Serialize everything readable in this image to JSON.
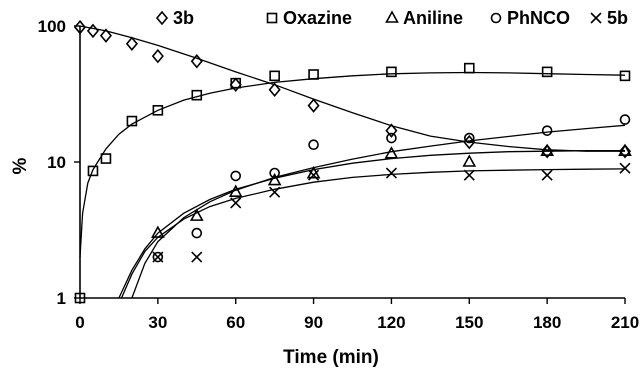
{
  "chart_data": {
    "type": "scatter",
    "xlabel": "Time (min)",
    "ylabel": "%",
    "xlim": [
      0,
      210
    ],
    "ylim": [
      1,
      100
    ],
    "yscale": "log",
    "x_ticks": [
      "0",
      "30",
      "60",
      "90",
      "120",
      "150",
      "180",
      "210"
    ],
    "y_ticks": [
      "1",
      "10",
      "100"
    ],
    "legend_position": "top",
    "series": [
      {
        "name": "3b",
        "marker": "diamond",
        "points": [
          [
            0,
            98
          ],
          [
            5,
            92
          ],
          [
            10,
            85
          ],
          [
            20,
            74
          ],
          [
            30,
            60
          ],
          [
            45,
            55
          ],
          [
            60,
            37
          ],
          [
            75,
            34
          ],
          [
            90,
            26
          ],
          [
            120,
            17
          ],
          [
            150,
            14
          ],
          [
            180,
            12
          ],
          [
            210,
            12
          ]
        ],
        "fit": [
          [
            0,
            100
          ],
          [
            10,
            92
          ],
          [
            20,
            82
          ],
          [
            30,
            72
          ],
          [
            45,
            58
          ],
          [
            60,
            46
          ],
          [
            75,
            37
          ],
          [
            90,
            29
          ],
          [
            105,
            23
          ],
          [
            120,
            18.5
          ],
          [
            135,
            15.5
          ],
          [
            150,
            14
          ],
          [
            165,
            13
          ],
          [
            180,
            12.3
          ],
          [
            195,
            12
          ],
          [
            210,
            12
          ]
        ]
      },
      {
        "name": "Oxazine",
        "marker": "square",
        "points": [
          [
            0,
            1
          ],
          [
            5,
            8.6
          ],
          [
            10,
            10.6
          ],
          [
            20,
            20
          ],
          [
            30,
            24
          ],
          [
            45,
            31
          ],
          [
            60,
            38
          ],
          [
            75,
            43
          ],
          [
            90,
            44
          ],
          [
            120,
            46
          ],
          [
            150,
            49
          ],
          [
            180,
            46
          ],
          [
            210,
            43
          ]
        ],
        "fit": [
          [
            0,
            2
          ],
          [
            1,
            4.2
          ],
          [
            3,
            7
          ],
          [
            5,
            8.8
          ],
          [
            10,
            12.5
          ],
          [
            15,
            16
          ],
          [
            20,
            19
          ],
          [
            30,
            24
          ],
          [
            40,
            28.5
          ],
          [
            50,
            32
          ],
          [
            60,
            35
          ],
          [
            75,
            38.5
          ],
          [
            90,
            41
          ],
          [
            105,
            43
          ],
          [
            120,
            44.5
          ],
          [
            135,
            45.2
          ],
          [
            150,
            45.5
          ],
          [
            165,
            45.2
          ],
          [
            180,
            44.6
          ],
          [
            195,
            44
          ],
          [
            210,
            43.5
          ]
        ]
      },
      {
        "name": "Aniline",
        "marker": "triangle",
        "points": [
          [
            30,
            3
          ],
          [
            45,
            4
          ],
          [
            60,
            6
          ],
          [
            75,
            7.3
          ],
          [
            90,
            8.2
          ],
          [
            120,
            11.5
          ],
          [
            150,
            10
          ],
          [
            180,
            12
          ],
          [
            210,
            12
          ]
        ],
        "fit": [
          [
            15,
            1
          ],
          [
            20,
            1.6
          ],
          [
            25,
            2.3
          ],
          [
            30,
            3
          ],
          [
            40,
            4.2
          ],
          [
            50,
            5.3
          ],
          [
            60,
            6.3
          ],
          [
            75,
            7.6
          ],
          [
            90,
            8.8
          ],
          [
            105,
            9.8
          ],
          [
            120,
            10.6
          ],
          [
            135,
            11.2
          ],
          [
            150,
            11.6
          ],
          [
            165,
            11.9
          ],
          [
            180,
            12
          ],
          [
            195,
            12.1
          ],
          [
            210,
            12.1
          ]
        ]
      },
      {
        "name": "PhNCO",
        "marker": "circle",
        "points": [
          [
            30,
            2
          ],
          [
            45,
            3
          ],
          [
            60,
            7.9
          ],
          [
            75,
            8.3
          ],
          [
            90,
            13.4
          ],
          [
            120,
            15
          ],
          [
            150,
            15
          ],
          [
            180,
            17
          ],
          [
            210,
            20.5
          ]
        ],
        "fit": [
          [
            20,
            1
          ],
          [
            25,
            1.8
          ],
          [
            30,
            2.6
          ],
          [
            40,
            3.9
          ],
          [
            50,
            5.1
          ],
          [
            60,
            6.2
          ],
          [
            75,
            7.7
          ],
          [
            90,
            9.1
          ],
          [
            105,
            10.5
          ],
          [
            120,
            11.9
          ],
          [
            135,
            13.1
          ],
          [
            150,
            14.3
          ],
          [
            165,
            15.4
          ],
          [
            180,
            16.6
          ],
          [
            195,
            17.6
          ],
          [
            210,
            18.6
          ]
        ]
      },
      {
        "name": "5b",
        "marker": "x",
        "points": [
          [
            30,
            2
          ],
          [
            45,
            2
          ],
          [
            60,
            5
          ],
          [
            75,
            6
          ],
          [
            90,
            8
          ],
          [
            120,
            8.3
          ],
          [
            150,
            8
          ],
          [
            180,
            8
          ],
          [
            210,
            9
          ]
        ],
        "fit": [
          [
            16,
            1
          ],
          [
            20,
            1.5
          ],
          [
            25,
            2.2
          ],
          [
            30,
            2.8
          ],
          [
            40,
            3.8
          ],
          [
            50,
            4.7
          ],
          [
            60,
            5.4
          ],
          [
            75,
            6.3
          ],
          [
            90,
            7.1
          ],
          [
            105,
            7.7
          ],
          [
            120,
            8.1
          ],
          [
            135,
            8.4
          ],
          [
            150,
            8.6
          ],
          [
            165,
            8.7
          ],
          [
            180,
            8.8
          ],
          [
            195,
            8.85
          ],
          [
            210,
            8.9
          ]
        ]
      }
    ]
  }
}
